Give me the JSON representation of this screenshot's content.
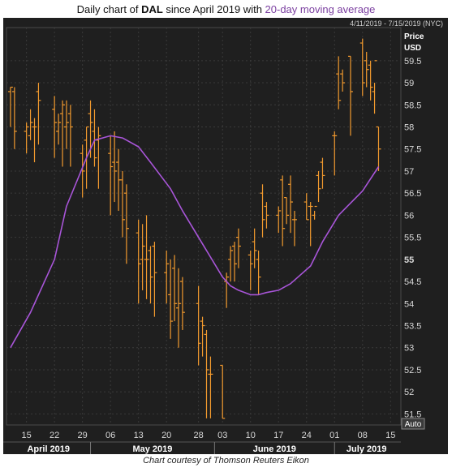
{
  "title": {
    "prefix": "Daily chart of ",
    "ticker": "DAL",
    "middle": " since April 2019 with ",
    "ma_label": "20-day moving average"
  },
  "date_range": "4/11/2019 - 7/15/2019 (NYC)",
  "caption": "Chart courtesy of Thomson Reuters Eikon",
  "colors": {
    "background": "#1f1f1f",
    "grid": "#3a3a3a",
    "bars": "#f29a2e",
    "ma": "#a855d8",
    "axis_text": "#d8d8d8",
    "accent_ma_title": "#7b3fa0"
  },
  "chart_data": {
    "type": "line",
    "ylabel": "Price",
    "yunit": "USD",
    "ylim": [
      51.25,
      60.25
    ],
    "yticks": [
      "51.5",
      "52",
      "52.5",
      "53",
      "53.5",
      "54",
      "54.5",
      "55",
      "55.5",
      "56",
      "56.5",
      "57",
      "57.5",
      "58",
      "58.5",
      "59",
      "59.5"
    ],
    "ybold": "55",
    "xticks": [
      "15",
      "22",
      "29",
      "06",
      "13",
      "20",
      "28",
      "03",
      "10",
      "17",
      "24",
      "01",
      "08",
      "15"
    ],
    "months": [
      "April 2019",
      "May 2019",
      "June 2019",
      "July 2019"
    ],
    "auto_label": "Auto",
    "grid": true,
    "ohlc": {
      "x": [
        "2019-04-11",
        "2019-04-12",
        "2019-04-15",
        "2019-04-16",
        "2019-04-17",
        "2019-04-18",
        "2019-04-22",
        "2019-04-23",
        "2019-04-24",
        "2019-04-25",
        "2019-04-26",
        "2019-04-29",
        "2019-04-30",
        "2019-05-01",
        "2019-05-02",
        "2019-05-03",
        "2019-05-06",
        "2019-05-07",
        "2019-05-08",
        "2019-05-09",
        "2019-05-10",
        "2019-05-13",
        "2019-05-14",
        "2019-05-15",
        "2019-05-16",
        "2019-05-17",
        "2019-05-20",
        "2019-05-21",
        "2019-05-22",
        "2019-05-23",
        "2019-05-24",
        "2019-05-28",
        "2019-05-29",
        "2019-05-30",
        "2019-05-31",
        "2019-06-03",
        "2019-06-04",
        "2019-06-05",
        "2019-06-06",
        "2019-06-07",
        "2019-06-10",
        "2019-06-11",
        "2019-06-12",
        "2019-06-13",
        "2019-06-14",
        "2019-06-17",
        "2019-06-18",
        "2019-06-19",
        "2019-06-20",
        "2019-06-21",
        "2019-06-24",
        "2019-06-25",
        "2019-06-26",
        "2019-06-27",
        "2019-06-28",
        "2019-07-01",
        "2019-07-02",
        "2019-07-03",
        "2019-07-05",
        "2019-07-08",
        "2019-07-09",
        "2019-07-10",
        "2019-07-11",
        "2019-07-12"
      ],
      "high": [
        58.9,
        58.9,
        58.1,
        58.4,
        58.2,
        59.0,
        58.7,
        58.3,
        58.6,
        58.6,
        58.5,
        57.6,
        58.0,
        58.6,
        58.4,
        58.0,
        57.8,
        57.9,
        57.5,
        57.0,
        56.7,
        55.9,
        55.8,
        56.0,
        55.3,
        55.4,
        55.2,
        55.0,
        55.1,
        54.8,
        54.6,
        54.4,
        53.7,
        53.4,
        52.8,
        52.6,
        54.7,
        55.3,
        55.4,
        55.7,
        55.2,
        55.7,
        55.2,
        56.7,
        56.3,
        56.2,
        56.9,
        56.4,
        56.9,
        56.1,
        56.5,
        56.3,
        56.1,
        57.0,
        57.3,
        57.9,
        59.6,
        59.3,
        59.6,
        60.0,
        59.7,
        59.5,
        59.0,
        58.0
      ],
      "low": [
        58.0,
        57.5,
        57.4,
        57.7,
        57.2,
        57.6,
        57.3,
        57.6,
        57.1,
        57.5,
        57.1,
        56.4,
        56.6,
        57.3,
        57.1,
        56.6,
        56.0,
        56.3,
        56.1,
        55.5,
        54.9,
        54.0,
        54.3,
        54.1,
        54.0,
        53.7,
        54.0,
        53.2,
        53.6,
        53.0,
        53.4,
        52.6,
        52.8,
        51.4,
        51.4,
        51.4,
        53.9,
        54.5,
        54.5,
        54.8,
        54.3,
        54.8,
        54.2,
        55.5,
        55.7,
        55.6,
        55.3,
        55.8,
        55.6,
        55.3,
        55.9,
        55.3,
        55.9,
        56.3,
        56.6,
        56.9,
        58.4,
        58.8,
        57.8,
        58.7,
        58.9,
        58.6,
        58.3,
        57.0
      ],
      "open": [
        58.8,
        58.8,
        57.9,
        57.8,
        58.0,
        58.8,
        58.4,
        57.9,
        58.3,
        58.0,
        58.3,
        57.4,
        57.7,
        58.3,
        57.9,
        57.7,
        57.4,
        57.2,
        57.2,
        56.8,
        56.5,
        55.6,
        55.0,
        55.0,
        55.2,
        55.3,
        54.7,
        54.2,
        54.8,
        53.9,
        54.5,
        54.0,
        53.6,
        53.3,
        52.4,
        52.6,
        54.5,
        55.0,
        55.3,
        55.5,
        55.1,
        55.4,
        55.0,
        56.5,
        56.2,
        56.0,
        56.8,
        56.4,
        56.7,
        55.9,
        56.3,
        56.2,
        56.0,
        56.9,
        57.2,
        57.8,
        59.2,
        59.2,
        59.6,
        59.9,
        59.5,
        59.4,
        58.8,
        58.0
      ],
      "close": [
        58.9,
        57.9,
        58.0,
        58.1,
        58.0,
        58.6,
        58.1,
        58.1,
        58.5,
        58.1,
        58.0,
        57.0,
        58.0,
        58.1,
        57.3,
        57.8,
        57.1,
        57.0,
        56.8,
        55.9,
        55.7,
        54.9,
        55.3,
        55.0,
        54.6,
        54.7,
        54.9,
        53.6,
        54.0,
        54.0,
        53.8,
        53.1,
        53.5,
        52.5,
        52.4,
        51.4,
        54.6,
        55.2,
        54.9,
        55.3,
        54.9,
        55.2,
        54.6,
        55.9,
        56.0,
        56.1,
        55.7,
        56.0,
        56.3,
        55.9,
        55.9,
        56.2,
        56.2,
        56.6,
        56.9,
        57.8,
        58.6,
        59.0,
        58.8,
        59.0,
        59.3,
        58.9,
        59.5,
        57.5
      ]
    },
    "series": [
      {
        "name": "20-day moving average",
        "x": [
          "2019-04-11",
          "2019-04-16",
          "2019-04-22",
          "2019-04-25",
          "2019-04-30",
          "2019-05-02",
          "2019-05-06",
          "2019-05-09",
          "2019-05-13",
          "2019-05-16",
          "2019-05-21",
          "2019-05-24",
          "2019-05-30",
          "2019-06-03",
          "2019-06-05",
          "2019-06-07",
          "2019-06-10",
          "2019-06-12",
          "2019-06-14",
          "2019-06-17",
          "2019-06-20",
          "2019-06-25",
          "2019-06-28",
          "2019-07-02",
          "2019-07-08",
          "2019-07-12"
        ],
        "values": [
          53.0,
          53.8,
          55.0,
          56.2,
          57.3,
          57.7,
          57.8,
          57.75,
          57.55,
          57.2,
          56.6,
          56.1,
          55.2,
          54.6,
          54.4,
          54.3,
          54.2,
          54.2,
          54.25,
          54.3,
          54.45,
          54.85,
          55.4,
          56.0,
          56.55,
          57.1
        ]
      }
    ]
  }
}
